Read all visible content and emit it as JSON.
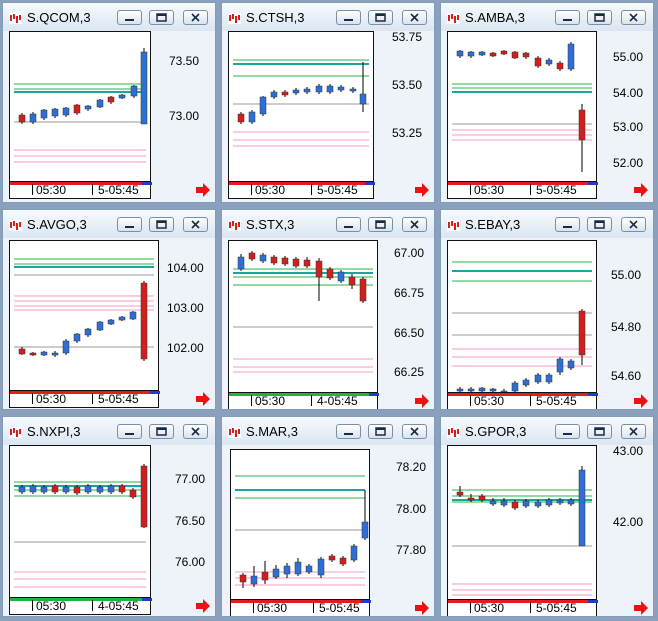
{
  "colors": {
    "bull": "#2e6fd6",
    "bear": "#d41e1e",
    "wick": "#000000",
    "green": "#28b34a",
    "teal": "#1fa39c",
    "grey": "#9a9a9a",
    "pink": "#f59ac8",
    "live": "#e31c1c",
    "live_green": "#21b43a",
    "end_blue": "#1a3fd0",
    "arrow": "#ee1111"
  },
  "charts": [
    {
      "title": "S.QCOM,3",
      "x_labels": [
        "05:30",
        "5-05:45"
      ],
      "y_labels": [
        "73.50",
        "73.00"
      ],
      "live_bar": "red"
    },
    {
      "title": "S.CTSH,3",
      "x_labels": [
        "05:30",
        "5-05:45"
      ],
      "y_labels": [
        "53.75",
        "53.50",
        "53.25"
      ],
      "live_bar": "red"
    },
    {
      "title": "S.AMBA,3",
      "x_labels": [
        "05:30",
        "5-05:45"
      ],
      "y_labels": [
        "55.00",
        "54.00",
        "53.00",
        "52.00"
      ],
      "live_bar": "red"
    },
    {
      "title": "S.AVGO,3",
      "x_labels": [
        "05:30",
        "5-05:45"
      ],
      "y_labels": [
        "104.00",
        "103.00",
        "102.00"
      ],
      "live_bar": "red"
    },
    {
      "title": "S.STX,3",
      "x_labels": [
        "05:30",
        "4-05:45"
      ],
      "y_labels": [
        "67.00",
        "66.75",
        "66.50",
        "66.25"
      ],
      "live_bar": "green"
    },
    {
      "title": "S.EBAY,3",
      "x_labels": [
        "05:30",
        "5-05:45"
      ],
      "y_labels": [
        "55.00",
        "54.80",
        "54.60"
      ],
      "live_bar": "red"
    },
    {
      "title": "S.NXPI,3",
      "x_labels": [
        "05:30",
        "4-05:45"
      ],
      "y_labels": [
        "77.00",
        "76.50",
        "76.00"
      ],
      "live_bar": "green"
    },
    {
      "title": "S.MAR,3",
      "x_labels": [
        "05:30",
        "5-05:45"
      ],
      "y_labels": [
        "78.20",
        "78.00",
        "77.80"
      ],
      "live_bar": "red"
    },
    {
      "title": "S.GPOR,3",
      "x_labels": [
        "05:30",
        "5-05:45"
      ],
      "y_labels": [
        "43.00",
        "42.00"
      ],
      "live_bar": "red"
    }
  ]
}
